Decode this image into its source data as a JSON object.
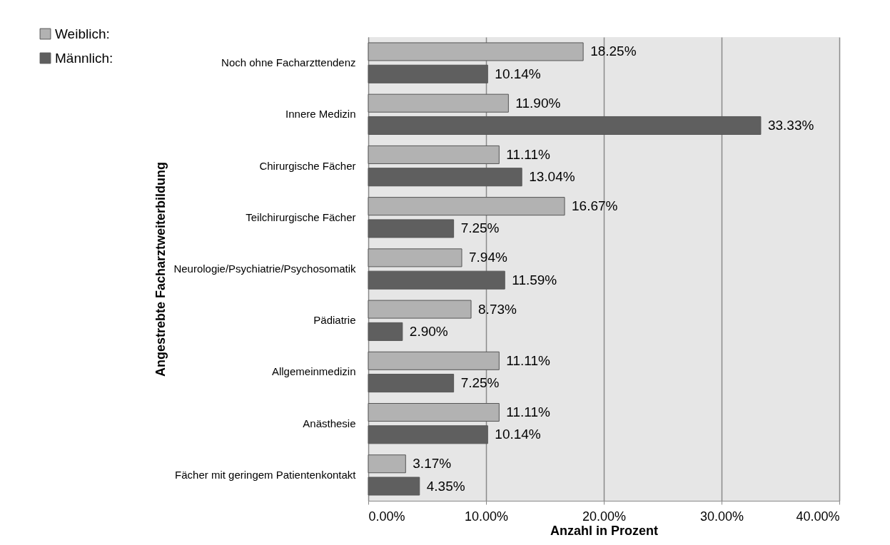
{
  "chart_data": {
    "type": "bar",
    "orientation": "horizontal",
    "xlabel": "Anzahl in Prozent",
    "ylabel": "Angestrebte Facharztweiterbildung",
    "categories": [
      "Noch ohne Facharzttendenz",
      "Innere Medizin",
      "Chirurgische Fächer",
      "Teilchirurgische Fächer",
      "Neurologie/Psychiatrie/Psychosomatik",
      "Pädiatrie",
      "Allgemeinmedizin",
      "Anästhesie",
      "Fächer mit geringem Patientenkontakt"
    ],
    "series": [
      {
        "name": "Weiblich:",
        "color": "#b2b2b2",
        "values": [
          18.25,
          11.9,
          11.11,
          16.67,
          7.94,
          8.73,
          11.11,
          11.11,
          3.17
        ],
        "value_labels": [
          "18.25%",
          "11.90%",
          "11.11%",
          "16.67%",
          "7.94%",
          "8.73%",
          "11.11%",
          "11.11%",
          "3.17%"
        ]
      },
      {
        "name": "Männlich:",
        "color": "#5f5f5f",
        "values": [
          10.14,
          33.33,
          13.04,
          7.25,
          11.59,
          2.9,
          7.25,
          10.14,
          4.35
        ],
        "value_labels": [
          "10.14%",
          "33.33%",
          "13.04%",
          "7.25%",
          "11.59%",
          "2.90%",
          "7.25%",
          "10.14%",
          "4.35%"
        ]
      }
    ],
    "xlim": [
      0,
      40
    ],
    "xticks": [
      {
        "value": 0,
        "label": "0.00%"
      },
      {
        "value": 10,
        "label": "10.00%"
      },
      {
        "value": 20,
        "label": "20.00%"
      },
      {
        "value": 30,
        "label": "30.00%"
      },
      {
        "value": 40,
        "label": "40.00%"
      }
    ],
    "grid": "x",
    "legend": "top left"
  }
}
